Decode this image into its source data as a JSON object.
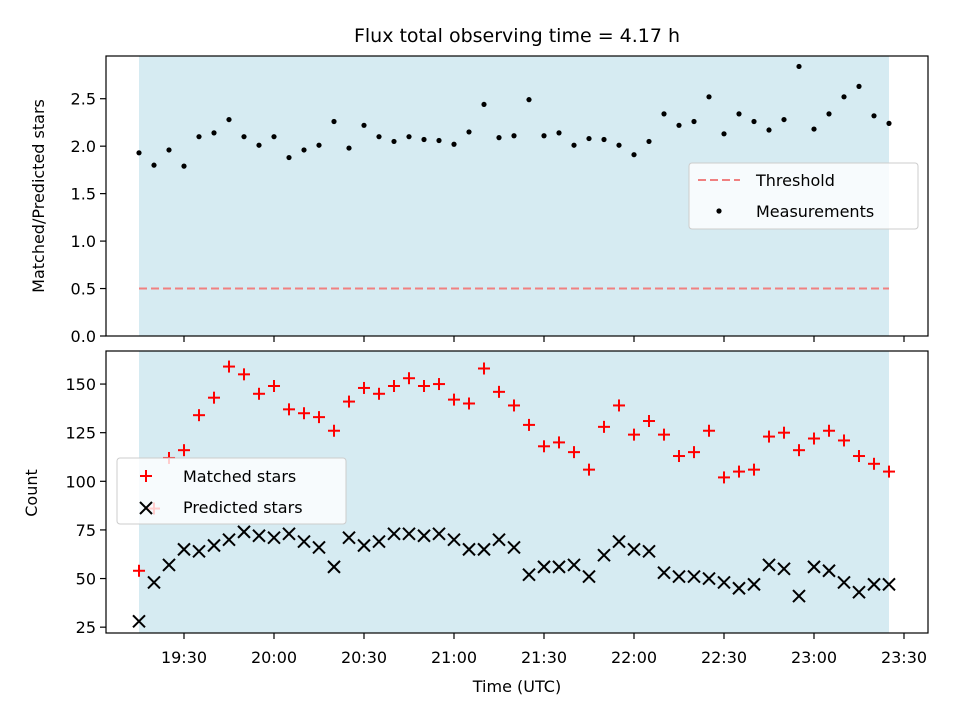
{
  "chart_data": [
    {
      "type": "scatter",
      "title": "Flux total observing time = 4.17 h",
      "xlabel": "",
      "ylabel": "Matched/Predicted stars",
      "ylim": [
        0,
        2.95
      ],
      "yticks": [
        "0.0",
        "0.5",
        "1.0",
        "1.5",
        "2.0",
        "2.5"
      ],
      "xlim": [
        "19:04",
        "23:38"
      ],
      "shade": {
        "from": "19:15",
        "to": "23:25",
        "color": "#add8e6"
      },
      "threshold": {
        "name": "Threshold",
        "value": 0.5,
        "color": "#f08080"
      },
      "legend_position": "center-right",
      "series": [
        {
          "name": "Measurements",
          "color": "#000000",
          "x": [
            "19:15",
            "19:20",
            "19:25",
            "19:30",
            "19:35",
            "19:40",
            "19:45",
            "19:50",
            "19:55",
            "20:00",
            "20:05",
            "20:10",
            "20:15",
            "20:20",
            "20:25",
            "20:30",
            "20:35",
            "20:40",
            "20:45",
            "20:50",
            "20:55",
            "21:00",
            "21:05",
            "21:10",
            "21:15",
            "21:20",
            "21:25",
            "21:30",
            "21:35",
            "21:40",
            "21:45",
            "21:50",
            "21:55",
            "22:00",
            "22:05",
            "22:10",
            "22:15",
            "22:20",
            "22:25",
            "22:30",
            "22:35",
            "22:40",
            "22:45",
            "22:50",
            "22:55",
            "23:00",
            "23:05",
            "23:10",
            "23:15",
            "23:20",
            "23:25"
          ],
          "values": [
            1.93,
            1.8,
            1.96,
            1.79,
            2.1,
            2.14,
            2.28,
            2.1,
            2.01,
            2.1,
            1.88,
            1.96,
            2.01,
            2.26,
            1.98,
            2.22,
            2.1,
            2.05,
            2.1,
            2.07,
            2.06,
            2.02,
            2.15,
            2.44,
            2.09,
            2.11,
            2.49,
            2.11,
            2.14,
            2.01,
            2.08,
            2.07,
            2.01,
            1.91,
            2.05,
            2.34,
            2.22,
            2.26,
            2.52,
            2.13,
            2.34,
            2.26,
            2.17,
            2.28,
            2.84,
            2.18,
            2.34,
            2.52,
            2.63,
            2.32,
            2.24
          ]
        }
      ]
    },
    {
      "type": "scatter",
      "title": "",
      "xlabel": "Time (UTC)",
      "ylabel": "Count",
      "ylim": [
        22,
        167
      ],
      "yticks": [
        "25",
        "50",
        "75",
        "100",
        "125",
        "150"
      ],
      "xlim": [
        "19:04",
        "23:38"
      ],
      "xticks": [
        "19:30",
        "20:00",
        "20:30",
        "21:00",
        "21:30",
        "22:00",
        "22:30",
        "23:00",
        "23:30"
      ],
      "shade": {
        "from": "19:15",
        "to": "23:25",
        "color": "#add8e6"
      },
      "legend_position": "center-left",
      "x": [
        "19:15",
        "19:20",
        "19:25",
        "19:30",
        "19:35",
        "19:40",
        "19:45",
        "19:50",
        "19:55",
        "20:00",
        "20:05",
        "20:10",
        "20:15",
        "20:20",
        "20:25",
        "20:30",
        "20:35",
        "20:40",
        "20:45",
        "20:50",
        "20:55",
        "21:00",
        "21:05",
        "21:10",
        "21:15",
        "21:20",
        "21:25",
        "21:30",
        "21:35",
        "21:40",
        "21:45",
        "21:50",
        "21:55",
        "22:00",
        "22:05",
        "22:10",
        "22:15",
        "22:20",
        "22:25",
        "22:30",
        "22:35",
        "22:40",
        "22:45",
        "22:50",
        "22:55",
        "23:00",
        "23:05",
        "23:10",
        "23:15",
        "23:20",
        "23:25"
      ],
      "series": [
        {
          "name": "Matched stars",
          "marker": "plus",
          "color": "#ff0000",
          "values": [
            54,
            86,
            112,
            116,
            134,
            143,
            159,
            155,
            145,
            149,
            137,
            135,
            133,
            126,
            141,
            148,
            145,
            149,
            153,
            149,
            150,
            142,
            140,
            158,
            146,
            139,
            129,
            118,
            120,
            115,
            106,
            128,
            139,
            124,
            131,
            124,
            113,
            115,
            126,
            102,
            105,
            106,
            123,
            125,
            116,
            122,
            126,
            121,
            113,
            109,
            105
          ]
        },
        {
          "name": "Predicted stars",
          "marker": "x",
          "color": "#000000",
          "values": [
            28,
            48,
            57,
            65,
            64,
            67,
            70,
            74,
            72,
            71,
            73,
            69,
            66,
            56,
            71,
            67,
            69,
            73,
            73,
            72,
            73,
            70,
            65,
            65,
            70,
            66,
            52,
            56,
            56,
            57,
            51,
            62,
            69,
            65,
            64,
            53,
            51,
            51,
            50,
            48,
            45,
            47,
            57,
            55,
            41,
            56,
            54,
            48,
            43,
            47,
            47
          ]
        }
      ]
    }
  ]
}
